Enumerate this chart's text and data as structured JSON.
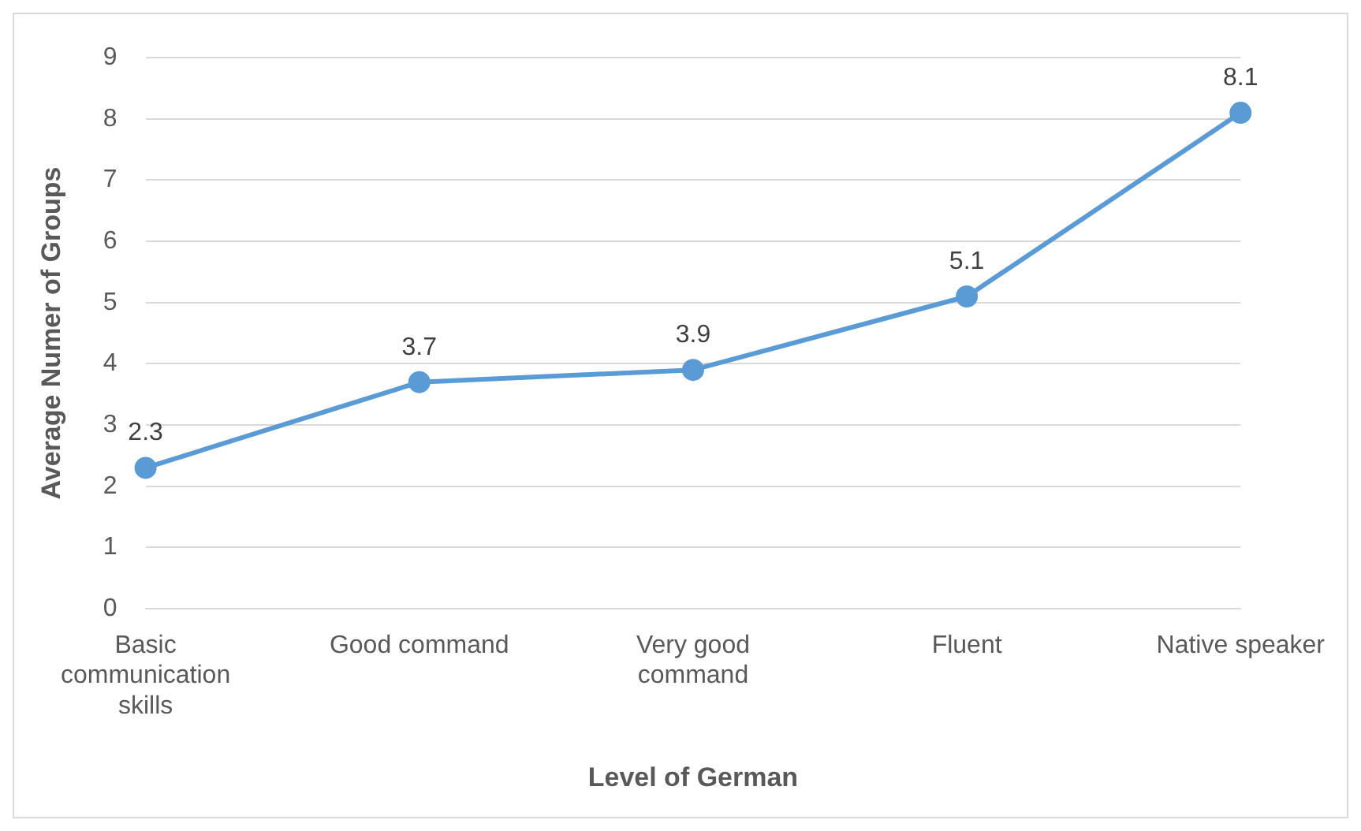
{
  "chart_data": {
    "type": "line",
    "xlabel": "Level of German",
    "ylabel": "Average Numer of Groups",
    "categories": [
      "Basic communication skills",
      "Good command",
      "Very good command",
      "Fluent",
      "Native speaker"
    ],
    "series": [
      {
        "color": "#5b9bd5",
        "values": [
          2.3,
          3.7,
          3.9,
          5.1,
          8.1
        ]
      }
    ],
    "ylim": [
      0,
      9
    ],
    "yticks": [
      0,
      1,
      2,
      3,
      4,
      5,
      6,
      7,
      8,
      9
    ],
    "grid": "y",
    "legend": false,
    "marker": "circle",
    "line_style": "solid",
    "data_labels": true
  }
}
